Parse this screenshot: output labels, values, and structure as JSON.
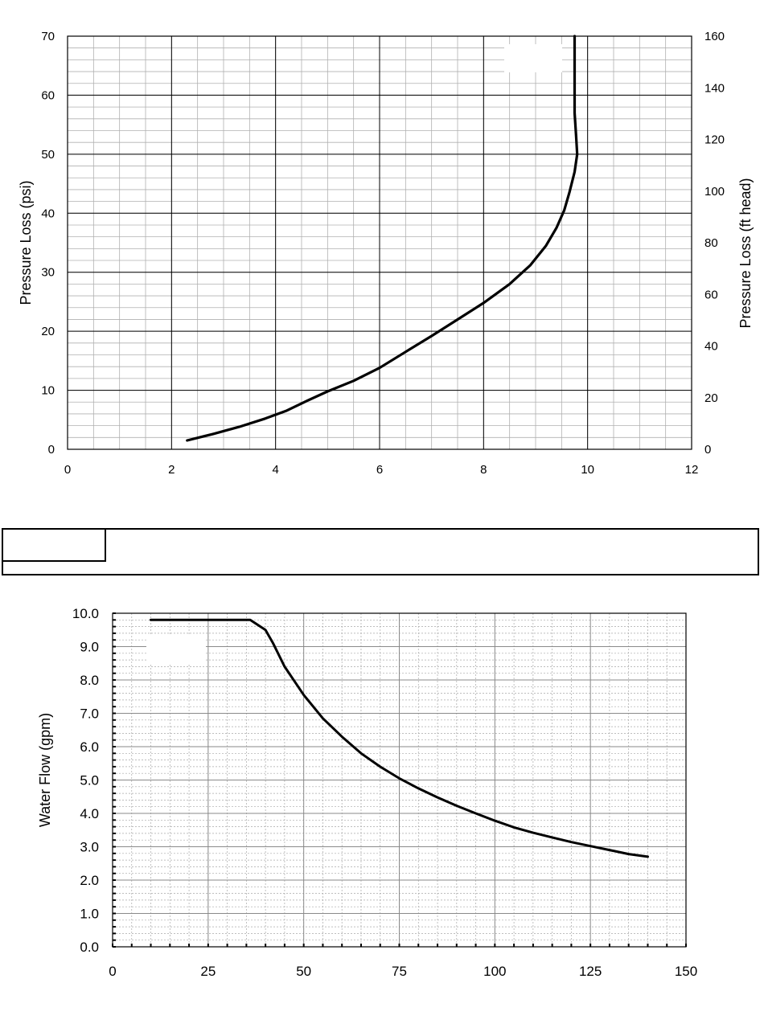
{
  "chart_data": [
    {
      "type": "line",
      "xlabel": "",
      "ylabel": "Pressure Loss (psi)",
      "y2label": "Pressure Loss (ft head)",
      "xlim": [
        0,
        12
      ],
      "ylim": [
        0,
        70
      ],
      "y2lim": [
        0,
        160
      ],
      "xticks": [
        "0",
        "2",
        "4",
        "6",
        "8",
        "10",
        "12"
      ],
      "yticks": [
        "0",
        "10",
        "20",
        "30",
        "40",
        "50",
        "60",
        "70"
      ],
      "y2ticks": [
        "0",
        "20",
        "40",
        "60",
        "80",
        "100",
        "120",
        "140",
        "160"
      ],
      "grid": true,
      "series": [
        {
          "x": [
            2.3,
            2.8,
            3.3,
            3.8,
            4.2,
            4.6,
            5.0,
            5.5,
            6.0,
            6.5,
            7.0,
            7.5,
            8.0,
            8.5,
            8.9,
            9.2,
            9.4,
            9.55,
            9.65,
            9.75,
            9.8,
            9.78,
            9.75,
            9.75,
            9.75
          ],
          "y": [
            1.5,
            2.6,
            3.8,
            5.2,
            6.5,
            8.2,
            9.8,
            11.6,
            13.8,
            16.5,
            19.2,
            22.0,
            24.8,
            28.0,
            31.2,
            34.5,
            37.5,
            40.5,
            43.5,
            47.0,
            50.0,
            53.0,
            57.0,
            63.0,
            70.0
          ]
        }
      ]
    },
    {
      "type": "line",
      "xlabel": "",
      "ylabel": "Water Flow (gpm)",
      "xlim": [
        0,
        150
      ],
      "ylim": [
        0,
        10
      ],
      "xticks": [
        "0",
        "25",
        "50",
        "75",
        "100",
        "125",
        "150"
      ],
      "yticks": [
        "0.0",
        "1.0",
        "2.0",
        "3.0",
        "4.0",
        "5.0",
        "6.0",
        "7.0",
        "8.0",
        "9.0",
        "10.0"
      ],
      "grid": true,
      "series": [
        {
          "x": [
            10,
            20,
            30,
            36,
            40,
            42,
            45,
            50,
            55,
            60,
            65,
            70,
            75,
            80,
            85,
            90,
            95,
            100,
            105,
            110,
            115,
            120,
            125,
            130,
            135,
            140
          ],
          "y": [
            9.8,
            9.8,
            9.8,
            9.8,
            9.5,
            9.1,
            8.4,
            7.55,
            6.85,
            6.3,
            5.8,
            5.4,
            5.05,
            4.75,
            4.48,
            4.23,
            4.0,
            3.78,
            3.58,
            3.42,
            3.28,
            3.14,
            3.02,
            2.9,
            2.78,
            2.7
          ]
        }
      ]
    }
  ]
}
